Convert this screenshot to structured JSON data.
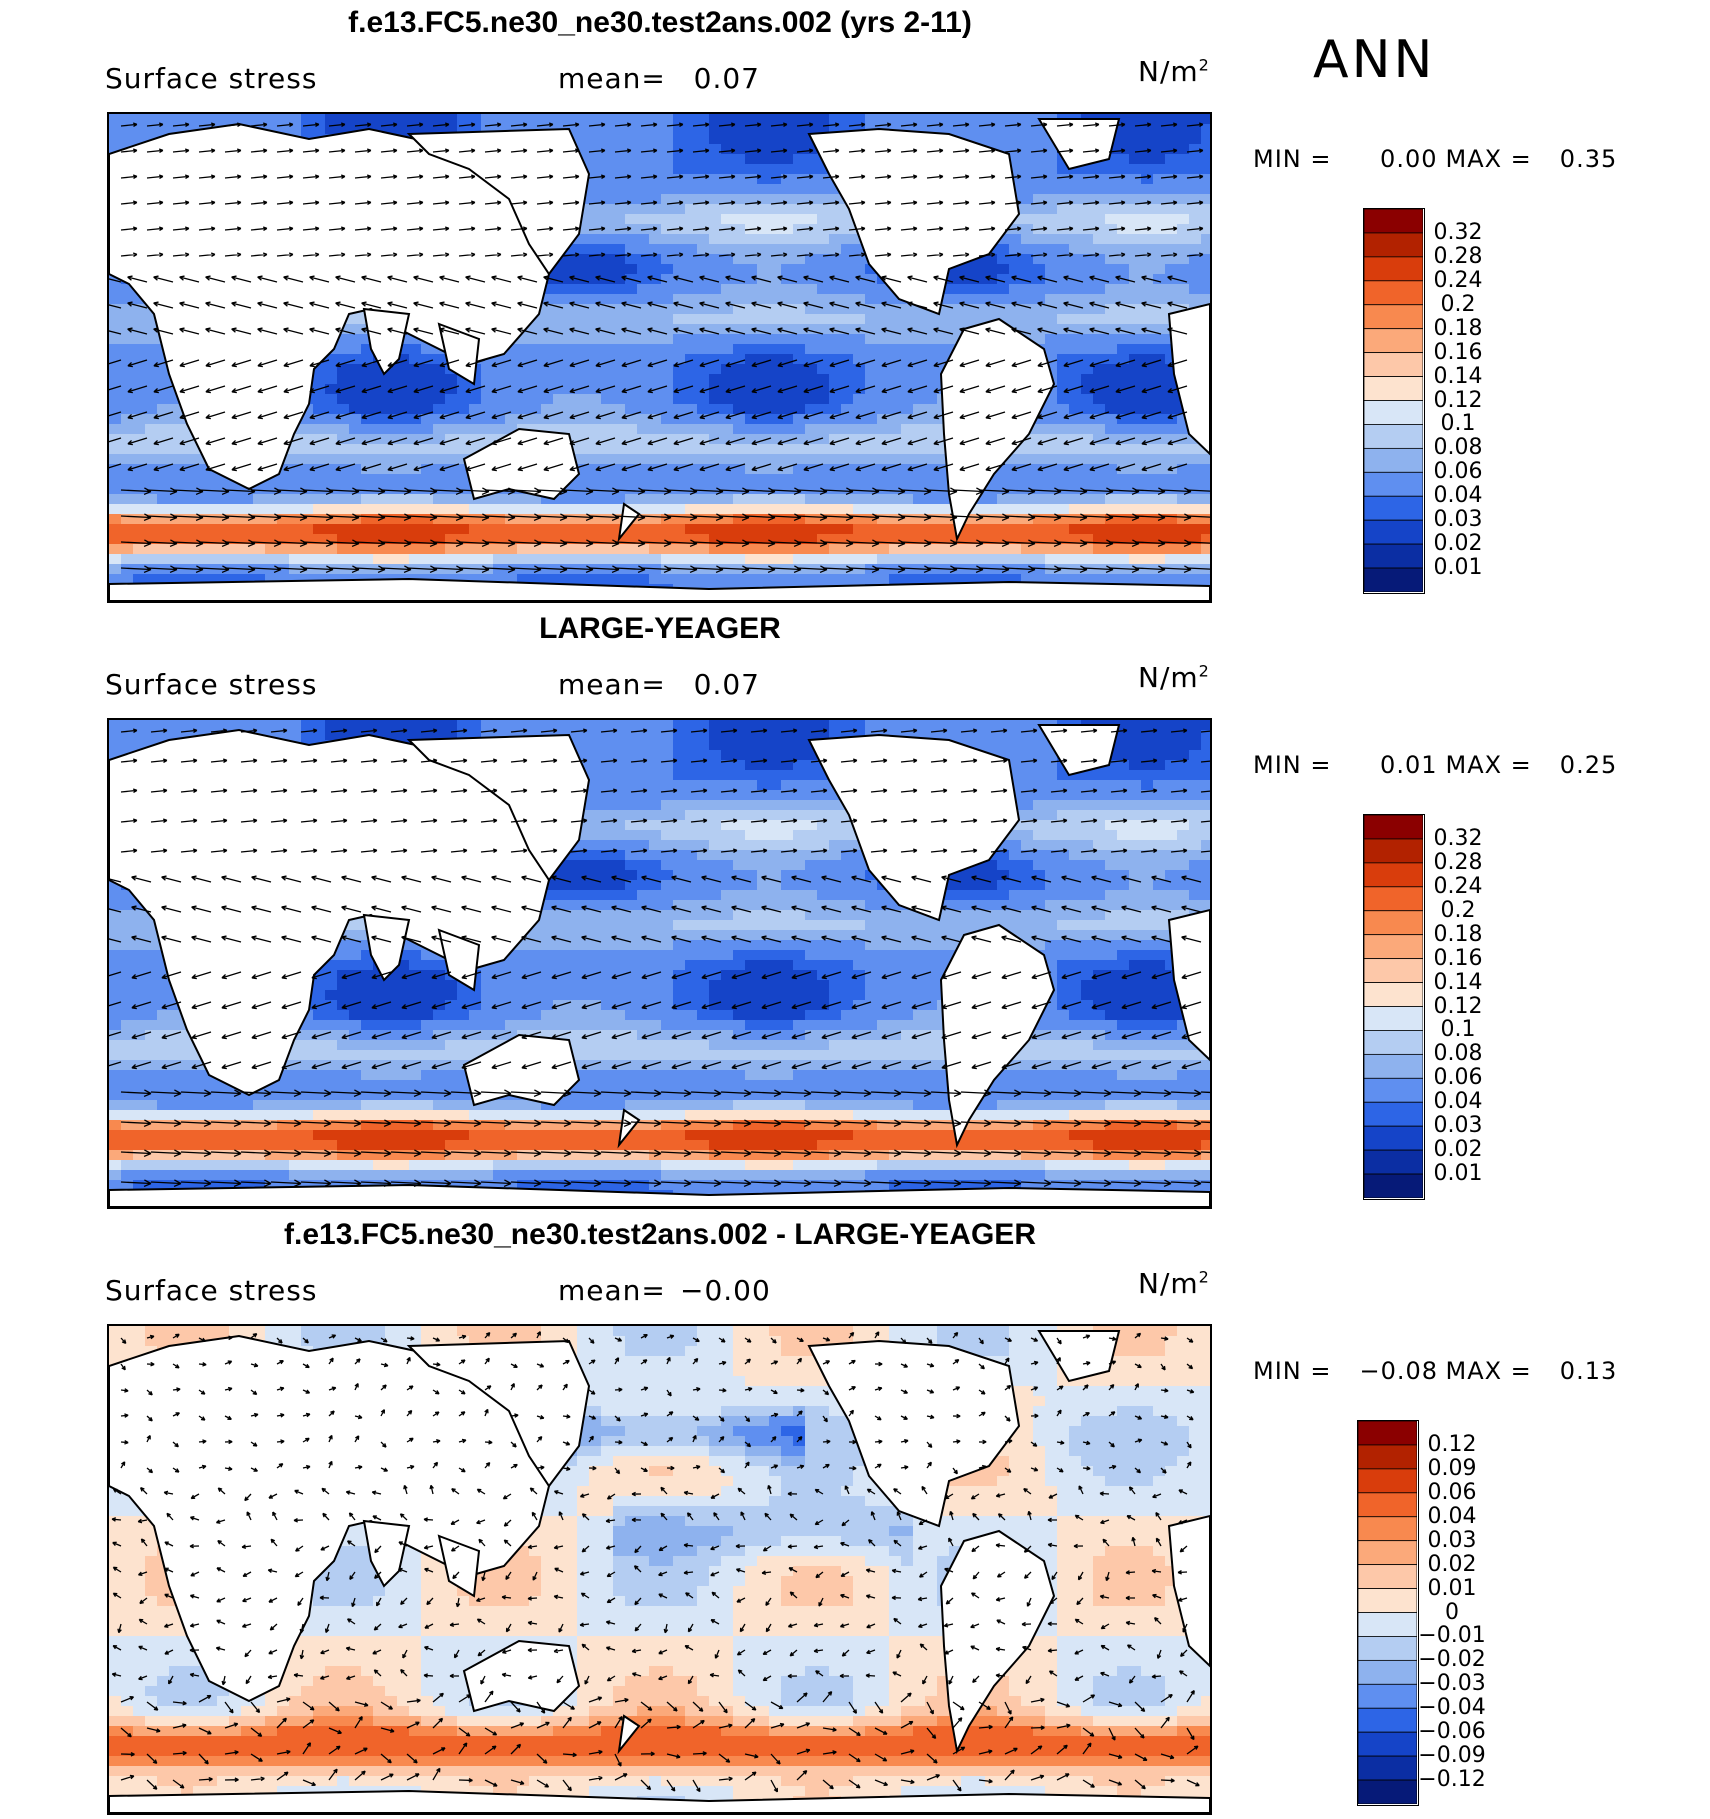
{
  "season": "ANN",
  "panels": [
    {
      "title": "f.e13.FC5.ne30_ne30.test2ans.002 (yrs 2-11)",
      "variable": "Surface stress",
      "mean_label": "mean=",
      "mean_value": "0.07",
      "units": "N/m",
      "units_exp": "2",
      "min_label": "MIN =",
      "min_value": "0.00",
      "max_label": "MAX =",
      "max_value": "0.35",
      "levels": [
        "0.32",
        "0.28",
        "0.24",
        "0.2",
        "0.18",
        "0.16",
        "0.14",
        "0.12",
        "0.1",
        "0.08",
        "0.06",
        "0.04",
        "0.03",
        "0.02",
        "0.01"
      ],
      "palette": [
        "#8b0000",
        "#b22200",
        "#d93d0c",
        "#f0642a",
        "#f8894f",
        "#fba97a",
        "#fdc8a9",
        "#fde3cf",
        "#d8e6f7",
        "#b4cdf2",
        "#8eb2ee",
        "#5f8ff0",
        "#2d65e6",
        "#1544c8",
        "#0b2ea3",
        "#061a78"
      ],
      "type": "magnitude"
    },
    {
      "title": "LARGE-YEAGER",
      "variable": "Surface stress",
      "mean_label": "mean=",
      "mean_value": "0.07",
      "units": "N/m",
      "units_exp": "2",
      "min_label": "MIN =",
      "min_value": "0.01",
      "max_label": "MAX =",
      "max_value": "0.25",
      "levels": [
        "0.32",
        "0.28",
        "0.24",
        "0.2",
        "0.18",
        "0.16",
        "0.14",
        "0.12",
        "0.1",
        "0.08",
        "0.06",
        "0.04",
        "0.03",
        "0.02",
        "0.01"
      ],
      "palette": [
        "#8b0000",
        "#b22200",
        "#d93d0c",
        "#f0642a",
        "#f8894f",
        "#fba97a",
        "#fdc8a9",
        "#fde3cf",
        "#d8e6f7",
        "#b4cdf2",
        "#8eb2ee",
        "#5f8ff0",
        "#2d65e6",
        "#1544c8",
        "#0b2ea3",
        "#061a78"
      ],
      "type": "magnitude"
    },
    {
      "title": "f.e13.FC5.ne30_ne30.test2ans.002 - LARGE-YEAGER",
      "variable": "Surface stress",
      "mean_label": "mean=",
      "mean_value": "−0.00",
      "units": "N/m",
      "units_exp": "2",
      "min_label": "MIN =",
      "min_value": "−0.08",
      "max_label": "MAX =",
      "max_value": "0.13",
      "levels": [
        "0.12",
        "0.09",
        "0.06",
        "0.04",
        "0.03",
        "0.02",
        "0.01",
        "0",
        "−0.01",
        "−0.02",
        "−0.03",
        "−0.04",
        "−0.06",
        "−0.09",
        "−0.12"
      ],
      "palette": [
        "#8b0000",
        "#b22200",
        "#d93d0c",
        "#f0642a",
        "#f8894f",
        "#fba97a",
        "#fdc8a9",
        "#fde3cf",
        "#d8e6f7",
        "#b4cdf2",
        "#8eb2ee",
        "#5f8ff0",
        "#2d65e6",
        "#1544c8",
        "#0b2ea3",
        "#061a78"
      ],
      "type": "difference"
    }
  ]
}
